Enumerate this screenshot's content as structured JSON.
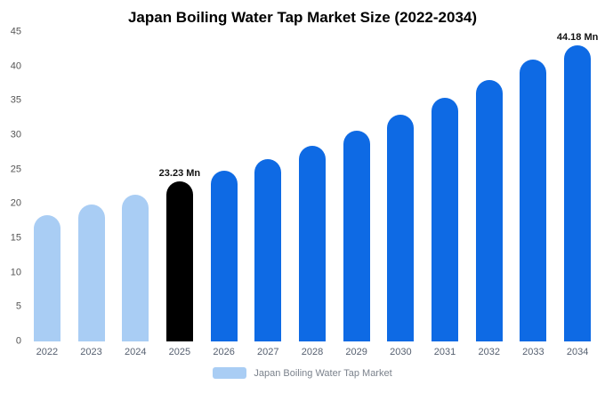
{
  "title": "Japan Boiling Water Tap Market Size (2022-2034)",
  "legend": {
    "label": "Japan Boiling Water Tap Market",
    "swatch_color": "#a9cdf4"
  },
  "colors": {
    "light_blue_bar": "#a9cdf4",
    "highlight_black_bar": "#000000",
    "blue_bar": "#0e6ae4",
    "tick_text": "#555555",
    "annotation_text": "#111111"
  },
  "chart_data": {
    "type": "bar",
    "title": "Japan Boiling Water Tap Market Size (2022-2034)",
    "categories": [
      "2022",
      "2023",
      "2024",
      "2025",
      "2026",
      "2027",
      "2028",
      "2029",
      "2030",
      "2031",
      "2032",
      "2033",
      "2034"
    ],
    "values": [
      18.4,
      19.9,
      21.3,
      23.23,
      24.8,
      26.5,
      28.5,
      30.6,
      33.0,
      35.4,
      38.0,
      41.0,
      44.18
    ],
    "bar_colors": [
      "#a9cdf4",
      "#a9cdf4",
      "#a9cdf4",
      "#000000",
      "#0e6ae4",
      "#0e6ae4",
      "#0e6ae4",
      "#0e6ae4",
      "#0e6ae4",
      "#0e6ae4",
      "#0e6ae4",
      "#0e6ae4",
      "#0e6ae4"
    ],
    "data_labels": [
      {
        "index": 3,
        "text": "23.23 Mn"
      },
      {
        "index": 12,
        "text": "44.18 Mn"
      }
    ],
    "xlabel": "",
    "ylabel": "",
    "ylim": [
      0,
      45
    ],
    "yticks": [
      0,
      5,
      10,
      15,
      20,
      25,
      30,
      35,
      40,
      45
    ],
    "grid": false,
    "legend_position": "bottom",
    "unit": "Mn"
  }
}
